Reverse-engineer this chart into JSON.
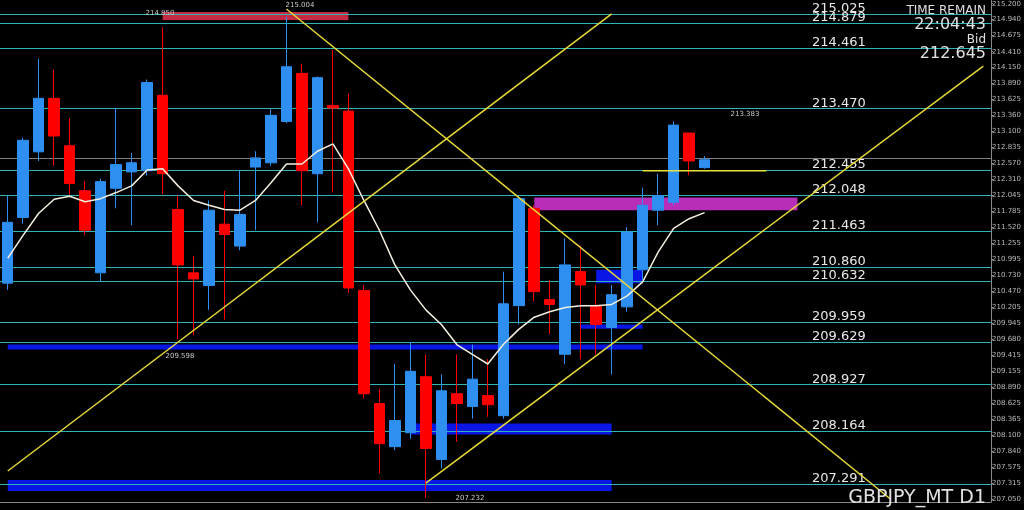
{
  "chart_data": {
    "type": "candlestick",
    "categories": [
      null,
      null,
      null,
      null,
      null,
      null,
      null,
      null,
      null,
      null,
      null,
      null,
      null,
      null,
      null,
      null,
      null,
      null,
      null,
      null,
      null,
      null,
      null,
      null,
      null,
      null,
      null,
      null,
      null,
      null,
      null,
      null,
      null,
      null,
      null,
      null,
      null,
      null,
      null,
      null,
      null,
      null,
      null,
      null,
      null,
      null,
      null,
      null,
      null,
      null,
      null,
      null,
      null,
      null,
      null,
      null,
      null,
      null,
      null,
      null,
      null,
      null,
      null,
      null
    ],
    "ohlc": [
      [
        210.6,
        212.04,
        210.49,
        211.6
      ],
      [
        211.68,
        212.99,
        211.58,
        212.95
      ],
      [
        212.76,
        214.29,
        212.61,
        213.64
      ],
      [
        213.64,
        214.11,
        212.53,
        213.02
      ],
      [
        212.86,
        213.31,
        212.06,
        212.24
      ],
      [
        212.12,
        212.28,
        211.39,
        211.47
      ],
      [
        210.77,
        212.32,
        210.62,
        212.27
      ],
      [
        212.16,
        213.48,
        211.83,
        212.55
      ],
      [
        212.43,
        212.74,
        211.55,
        212.58
      ],
      [
        212.45,
        213.95,
        212.37,
        213.9
      ],
      [
        213.69,
        214.81,
        212.07,
        212.4
      ],
      [
        211.81,
        212.04,
        209.68,
        210.9
      ],
      [
        210.77,
        211.05,
        209.74,
        210.67
      ],
      [
        210.56,
        211.96,
        210.16,
        211.8
      ],
      [
        211.57,
        212.12,
        210.0,
        211.4
      ],
      [
        211.21,
        212.45,
        211.14,
        211.73
      ],
      [
        212.51,
        212.77,
        211.47,
        212.66
      ],
      [
        212.58,
        213.46,
        212.53,
        213.36
      ],
      [
        213.26,
        214.98,
        213.23,
        214.16
      ],
      [
        214.05,
        214.21,
        211.88,
        212.45
      ],
      [
        212.4,
        214.0,
        211.6,
        213.98
      ],
      [
        213.52,
        214.44,
        212.09,
        213.48
      ],
      [
        213.43,
        213.72,
        210.44,
        210.52
      ],
      [
        210.48,
        210.57,
        208.7,
        208.78
      ],
      [
        208.62,
        208.86,
        207.47,
        207.96
      ],
      [
        207.91,
        209.27,
        207.85,
        208.34
      ],
      [
        208.14,
        209.63,
        208.04,
        209.15
      ],
      [
        209.06,
        209.43,
        207.07,
        207.88
      ],
      [
        207.7,
        209.1,
        207.55,
        208.83
      ],
      [
        208.78,
        209.43,
        207.99,
        208.62
      ],
      [
        208.57,
        209.59,
        208.37,
        209.02
      ],
      [
        208.75,
        209.35,
        208.4,
        208.6
      ],
      [
        208.42,
        210.79,
        208.37,
        210.26
      ],
      [
        210.23,
        212.04,
        209.92,
        211.99
      ],
      [
        211.83,
        211.88,
        210.3,
        210.46
      ],
      [
        210.33,
        210.65,
        209.76,
        210.25
      ],
      [
        209.43,
        211.34,
        209.27,
        210.9
      ],
      [
        210.79,
        211.22,
        209.35,
        210.57
      ],
      [
        210.23,
        210.57,
        209.43,
        209.92
      ],
      [
        209.87,
        210.57,
        209.1,
        210.41
      ],
      [
        210.21,
        211.52,
        210.13,
        211.44
      ],
      [
        210.82,
        212.17,
        210.65,
        211.88
      ],
      [
        211.8,
        212.4,
        211.55,
        212.04
      ],
      [
        211.93,
        213.26,
        211.88,
        213.2
      ],
      [
        213.07,
        213.07,
        212.37,
        212.61
      ],
      [
        212.5,
        212.69,
        212.48,
        212.63
      ],
      null,
      null,
      null,
      null,
      null,
      null,
      null,
      null,
      null,
      null,
      null,
      null,
      null,
      null,
      null,
      null,
      null,
      null
    ],
    "series": [
      {
        "type": "line",
        "color": "#f5efe0",
        "values": [
          211.01,
          211.39,
          211.75,
          211.98,
          212.03,
          211.94,
          211.99,
          212.09,
          212.2,
          212.46,
          212.48,
          212.2,
          211.96,
          211.88,
          211.81,
          211.8,
          211.96,
          212.25,
          212.56,
          212.56,
          212.77,
          212.89,
          212.48,
          211.96,
          211.47,
          210.9,
          210.49,
          210.16,
          209.92,
          209.59,
          209.43,
          209.27,
          209.59,
          209.84,
          210.04,
          210.13,
          210.2,
          210.23,
          210.23,
          210.25,
          210.39,
          210.62,
          211.11,
          211.5,
          211.66,
          211.76,
          null,
          null,
          null,
          null,
          null,
          null,
          null,
          null,
          null,
          null,
          null,
          null,
          null,
          null,
          null,
          null,
          null,
          null
        ]
      },
      {
        "type": "line",
        "color": "#e6d83a",
        "values": [
          207.51,
          null,
          null,
          null,
          null,
          null,
          null,
          null,
          null,
          null,
          null,
          null,
          null,
          null,
          null,
          null,
          null,
          null,
          null,
          null,
          null,
          null,
          null,
          null,
          null,
          null,
          null,
          null,
          null,
          null,
          null,
          null,
          null,
          null,
          null,
          null,
          null,
          null,
          null,
          215.03,
          null,
          null,
          null,
          null,
          null,
          null,
          null,
          null,
          null,
          null,
          null,
          null,
          null,
          null,
          null,
          null,
          null,
          null,
          null,
          null,
          null,
          null,
          null,
          null
        ]
      },
      {
        "type": "line",
        "color": "#e6d83a",
        "values": [
          null,
          null,
          null,
          null,
          null,
          null,
          null,
          null,
          null,
          null,
          null,
          null,
          null,
          null,
          null,
          null,
          null,
          null,
          null,
          null,
          null,
          null,
          null,
          null,
          null,
          null,
          null,
          207.31,
          null,
          null,
          null,
          null,
          null,
          null,
          null,
          null,
          null,
          null,
          null,
          null,
          null,
          null,
          null,
          null,
          null,
          null,
          null,
          null,
          null,
          null,
          null,
          null,
          null,
          null,
          null,
          null,
          null,
          null,
          null,
          null,
          null,
          null,
          null,
          214.17
        ]
      },
      {
        "type": "line",
        "color": "#e6d83a",
        "values": [
          null,
          null,
          null,
          null,
          null,
          null,
          null,
          null,
          null,
          null,
          null,
          null,
          null,
          null,
          null,
          null,
          null,
          null,
          215.11,
          null,
          null,
          null,
          null,
          null,
          null,
          null,
          null,
          null,
          null,
          null,
          null,
          null,
          null,
          null,
          null,
          null,
          null,
          null,
          null,
          null,
          null,
          null,
          null,
          null,
          null,
          null,
          null,
          null,
          null,
          null,
          null,
          null,
          null,
          null,
          null,
          null,
          null,
          207.05,
          null,
          null,
          null,
          null,
          null,
          null
        ]
      },
      {
        "type": "line",
        "color": "#e6e63a",
        "values": [
          null,
          null,
          null,
          null,
          null,
          null,
          null,
          null,
          null,
          null,
          null,
          null,
          null,
          null,
          null,
          null,
          null,
          null,
          null,
          null,
          null,
          null,
          null,
          null,
          null,
          null,
          null,
          null,
          null,
          null,
          null,
          null,
          null,
          null,
          null,
          null,
          null,
          null,
          null,
          null,
          null,
          212.45,
          null,
          null,
          null,
          null,
          null,
          null,
          null,
          212.45,
          null,
          null,
          null,
          null,
          null,
          null,
          null,
          null,
          null,
          null,
          null,
          null,
          null,
          null
        ]
      }
    ],
    "ylim": [
      207.0,
      215.25
    ],
    "yticks": [
      {
        "value": 207.05,
        "label": "207.050"
      },
      {
        "value": 207.315,
        "label": "207.315"
      },
      {
        "value": 207.575,
        "label": "207.575"
      },
      {
        "value": 207.84,
        "label": "207.840"
      },
      {
        "value": 208.1,
        "label": "208.100"
      },
      {
        "value": 208.365,
        "label": "208.365"
      },
      {
        "value": 208.625,
        "label": "208.625"
      },
      {
        "value": 208.89,
        "label": "208.890"
      },
      {
        "value": 209.155,
        "label": "209.155"
      },
      {
        "value": 209.415,
        "label": "209.415"
      },
      {
        "value": 209.68,
        "label": "209.680"
      },
      {
        "value": 209.945,
        "label": "209.945"
      },
      {
        "value": 210.205,
        "label": "210.205"
      },
      {
        "value": 210.47,
        "label": "210.470"
      },
      {
        "value": 210.73,
        "label": "210.730"
      },
      {
        "value": 210.995,
        "label": "210.995"
      },
      {
        "value": 211.255,
        "label": "211.255"
      },
      {
        "value": 211.52,
        "label": "211.520"
      },
      {
        "value": 211.785,
        "label": "211.785"
      },
      {
        "value": 212.045,
        "label": "212.045"
      },
      {
        "value": 212.31,
        "label": "212.310"
      },
      {
        "value": 212.57,
        "label": "212.570"
      },
      {
        "value": 212.835,
        "label": "212.835"
      },
      {
        "value": 213.1,
        "label": "213.100"
      },
      {
        "value": 213.36,
        "label": "213.360"
      },
      {
        "value": 213.625,
        "label": "213.625"
      },
      {
        "value": 213.89,
        "label": "213.890"
      },
      {
        "value": 214.15,
        "label": "214.150"
      },
      {
        "value": 214.41,
        "label": "214.410"
      },
      {
        "value": 214.675,
        "label": "214.675"
      },
      {
        "value": 214.94,
        "label": "214.940"
      },
      {
        "value": 215.2,
        "label": "215.200"
      }
    ],
    "tick_labels": "y",
    "ref_lines": [
      {
        "axis": "y",
        "value": 215.025,
        "label": "215.025",
        "color": "#2fb5b5"
      },
      {
        "axis": "y",
        "value": 214.879,
        "label": "214.879",
        "color": "#2fb5b5"
      },
      {
        "axis": "y",
        "value": 214.461,
        "label": "214.461",
        "color": "#2fb5b5"
      },
      {
        "axis": "y",
        "value": 213.47,
        "label": "213.470",
        "color": "#2fb5b5"
      },
      {
        "axis": "y",
        "value": 212.455,
        "label": "212.455",
        "color": "#2fb5b5"
      },
      {
        "axis": "y",
        "value": 212.048,
        "label": "212.048",
        "color": "#2fb5b5"
      },
      {
        "axis": "y",
        "value": 211.463,
        "label": "211.463",
        "color": "#2fb5b5"
      },
      {
        "axis": "y",
        "value": 210.86,
        "label": "210.860",
        "color": "#2fb5b5"
      },
      {
        "axis": "y",
        "value": 210.632,
        "label": "210.632",
        "color": "#2fb5b5"
      },
      {
        "axis": "y",
        "value": 209.959,
        "label": "209.959",
        "color": "#2fb5b5"
      },
      {
        "axis": "y",
        "value": 209.629,
        "label": "209.629",
        "color": "#2fb5b5"
      },
      {
        "axis": "y",
        "value": 208.927,
        "label": "208.927",
        "color": "#2fb5b5"
      },
      {
        "axis": "y",
        "value": 208.164,
        "label": "208.164",
        "color": "#2fb5b5"
      },
      {
        "axis": "y",
        "value": 207.291,
        "label": "207.291",
        "color": "#2fb5b5"
      },
      {
        "axis": "y",
        "value": 212.645,
        "label": null,
        "color": "#808080"
      }
    ],
    "bands": [
      {
        "axis": "y",
        "from": 214.93,
        "to": 215.06,
        "color": "#d9304a"
      },
      {
        "axis": "y",
        "from": 211.8,
        "to": 212.01,
        "color": "#cc33cc"
      },
      {
        "axis": "y",
        "from": 210.6,
        "to": 210.82,
        "color": "#0a1aff"
      },
      {
        "axis": "y",
        "from": 209.85,
        "to": 209.92,
        "color": "#0a1aff"
      },
      {
        "axis": "y",
        "from": 209.51,
        "to": 209.59,
        "color": "#0a1aff"
      },
      {
        "axis": "y",
        "from": 208.11,
        "to": 208.29,
        "color": "#0a1aff"
      },
      {
        "axis": "y",
        "from": 207.18,
        "to": 207.36,
        "color": "#0a1aff"
      }
    ],
    "annotations": [
      "TIME REMAIN",
      "22:04:43",
      "Bid",
      "212.645",
      "GBPJPY_MT D1",
      "214.850",
      "215.004",
      "209.598",
      "207.232",
      "213.383"
    ]
  }
}
